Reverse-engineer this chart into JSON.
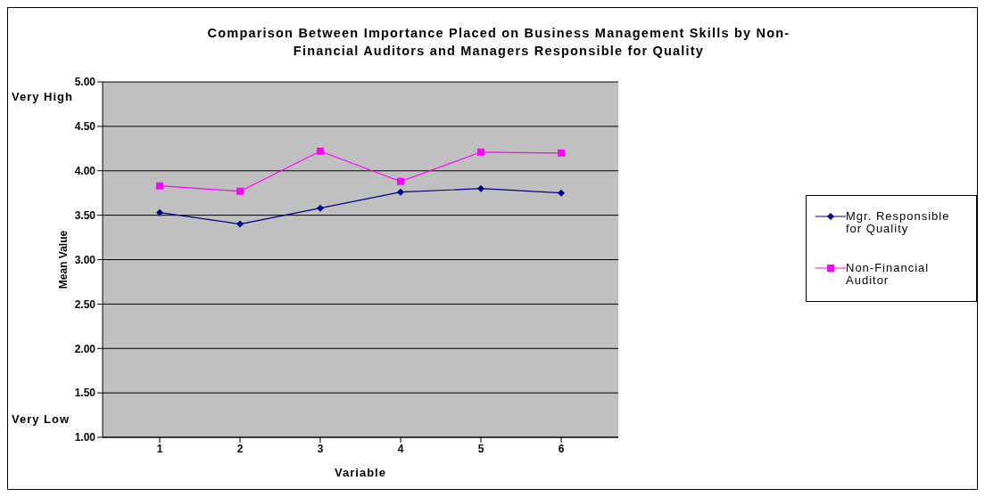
{
  "chart_data": {
    "type": "line",
    "title": "Comparison Between Importance Placed on Business Management Skills by Non-Financial Auditors and Managers Responsible for Quality",
    "xlabel": "Variable",
    "ylabel": "Mean Value",
    "annotations": [
      "Very High",
      "Very Low"
    ],
    "categories": [
      "1",
      "2",
      "3",
      "4",
      "5",
      "6"
    ],
    "series": [
      {
        "name": "Mgr. Responsible for Quality",
        "color": "#000080",
        "marker": "diamond",
        "values": [
          3.53,
          3.4,
          3.58,
          3.76,
          3.8,
          3.75
        ]
      },
      {
        "name": "Non-Financial Auditor",
        "color": "#ff00ff",
        "marker": "square",
        "values": [
          3.83,
          3.77,
          4.22,
          3.88,
          4.21,
          4.2
        ]
      }
    ],
    "ylim": [
      1,
      5
    ],
    "yticks": [
      {
        "value": 1,
        "label": "1.00"
      },
      {
        "value": 1.5,
        "label": "1.50"
      },
      {
        "value": 2,
        "label": "2.00"
      },
      {
        "value": 2.5,
        "label": "2.50"
      },
      {
        "value": 3,
        "label": "3.00"
      },
      {
        "value": 3.5,
        "label": "3.50"
      },
      {
        "value": 4,
        "label": "4.00"
      },
      {
        "value": 4.5,
        "label": "4.50"
      },
      {
        "value": 5,
        "label": "5.00"
      }
    ],
    "grid": "y",
    "legend": "right",
    "line_style": "solid"
  }
}
